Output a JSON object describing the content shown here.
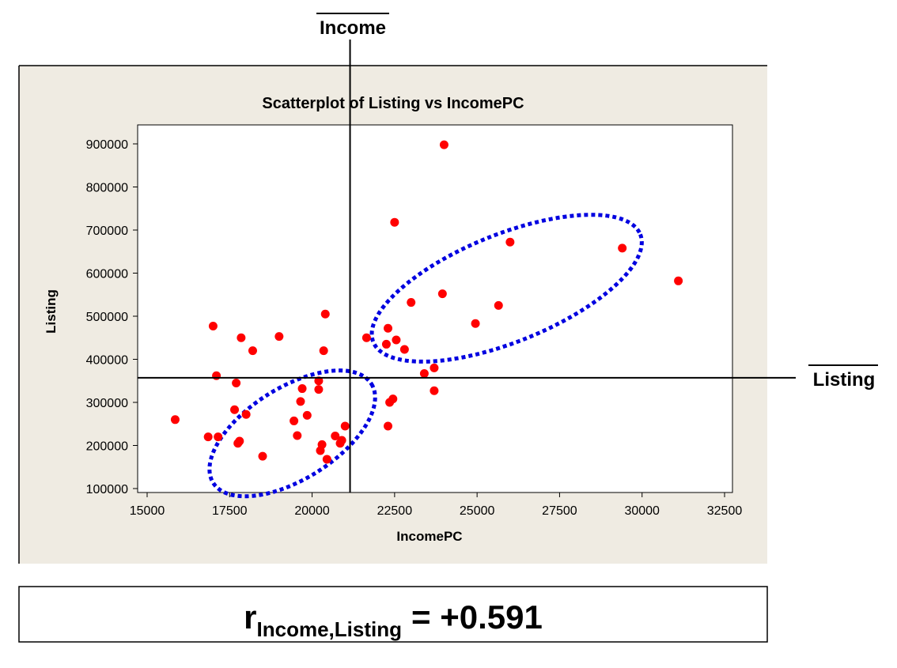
{
  "chart_data": {
    "type": "scatter",
    "title": "Scatterplot of Listing vs IncomePC",
    "xlabel": "IncomePC",
    "ylabel": "Listing",
    "xlim": [
      15000,
      32500
    ],
    "ylim": [
      100000,
      900000
    ],
    "xticks": [
      "15000",
      "17500",
      "20000",
      "22500",
      "25000",
      "27500",
      "30000",
      "32500"
    ],
    "yticks": [
      "100000",
      "200000",
      "300000",
      "400000",
      "500000",
      "600000",
      "700000",
      "800000",
      "900000"
    ],
    "grid": false,
    "colors": {
      "points": "#ff0000",
      "ellipses": "#0000e0",
      "panel_background": "#efebe2",
      "plot_background": "#ffffff"
    },
    "series": [
      {
        "points": [
          [
            15850,
            260000
          ],
          [
            16850,
            220000
          ],
          [
            17000,
            477000
          ],
          [
            17100,
            362000
          ],
          [
            17150,
            220000
          ],
          [
            17650,
            283000
          ],
          [
            17700,
            345000
          ],
          [
            17750,
            205000
          ],
          [
            17800,
            210000
          ],
          [
            17850,
            450000
          ],
          [
            18000,
            272000
          ],
          [
            18200,
            420000
          ],
          [
            18500,
            175000
          ],
          [
            19000,
            453000
          ],
          [
            19450,
            257000
          ],
          [
            19550,
            223000
          ],
          [
            19650,
            302000
          ],
          [
            19700,
            332000
          ],
          [
            19850,
            270000
          ],
          [
            20200,
            350000
          ],
          [
            20200,
            330000
          ],
          [
            20250,
            188000
          ],
          [
            20300,
            202000
          ],
          [
            20350,
            420000
          ],
          [
            20400,
            505000
          ],
          [
            20450,
            168000
          ],
          [
            20700,
            222000
          ],
          [
            20850,
            205000
          ],
          [
            20900,
            212000
          ],
          [
            21000,
            245000
          ],
          [
            21650,
            450000
          ],
          [
            22250,
            435000
          ],
          [
            22300,
            245000
          ],
          [
            22300,
            472000
          ],
          [
            22350,
            300000
          ],
          [
            22450,
            308000
          ],
          [
            22500,
            718000
          ],
          [
            22550,
            445000
          ],
          [
            22800,
            423000
          ],
          [
            23000,
            532000
          ],
          [
            23400,
            367000
          ],
          [
            23700,
            380000
          ],
          [
            23700,
            327000
          ],
          [
            23950,
            552000
          ],
          [
            24000,
            898000
          ],
          [
            24950,
            483000
          ],
          [
            25650,
            525000
          ],
          [
            26000,
            672000
          ],
          [
            29400,
            658000
          ],
          [
            31100,
            582000
          ]
        ]
      }
    ],
    "mean_lines": {
      "x_value": 21150,
      "y_value": 357000,
      "x_label": "Income",
      "y_label": "Listing"
    },
    "annotations": {
      "ellipses": [
        {
          "center": [
            19400,
            228000
          ],
          "note": "lower-left cluster"
        },
        {
          "center": [
            25900,
            565000
          ],
          "note": "upper-right cluster"
        }
      ]
    }
  },
  "correlation": {
    "r_symbol": "r",
    "subscript": "Income,Listing",
    "value_text": "= +0.591"
  }
}
